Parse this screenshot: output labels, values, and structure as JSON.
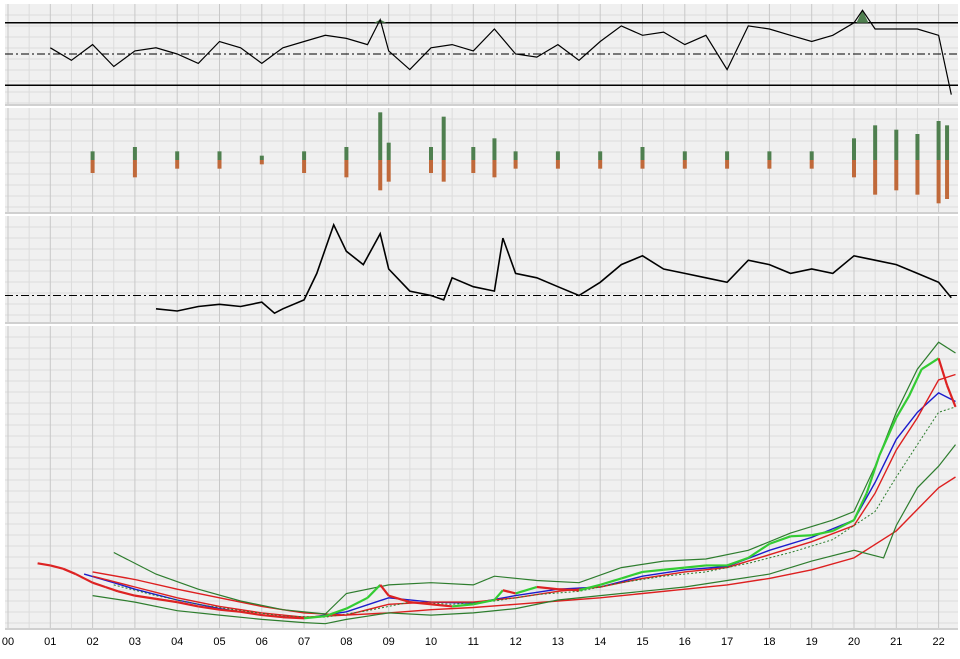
{
  "colors": {
    "background": "#f0f0f0",
    "grid": "#c8c8c8",
    "grid_minor": "#dcdcdc",
    "divider": "#a0a0a0",
    "line": "#000000",
    "bar_pos": "#4f7f4f",
    "bar_neg": "#c0693a",
    "fill_pos": "#4f7f4f",
    "price_up": "#33cc33",
    "price_down": "#dd2222",
    "ma_blue": "#1c1ccc",
    "ma_red": "#dd2020",
    "band_green": "#2e7d2e",
    "ma_dotted": "#2e7d2e"
  },
  "chart_data": [
    {
      "panel": "oscillator",
      "type": "line",
      "x_range": [
        2000,
        2022.5
      ],
      "upper_level": 1,
      "lower_level": -1,
      "mid_level": 0,
      "series": [
        {
          "x": [
            2001.0,
            2001.5,
            2002.0,
            2002.5,
            2003.0,
            2003.5,
            2004.0,
            2004.5,
            2005.0,
            2005.5,
            2006.0,
            2006.5,
            2007.0,
            2007.5,
            2008.0,
            2008.5,
            2008.8,
            2009.0,
            2009.5,
            2010.0,
            2010.5,
            2011.0,
            2011.5,
            2012.0,
            2012.5,
            2013.0,
            2013.5,
            2014.0,
            2014.5,
            2015.0,
            2015.5,
            2016.0,
            2016.5,
            2017.0,
            2017.5,
            2018.0,
            2018.5,
            2019.0,
            2019.5,
            2020.0,
            2020.2,
            2020.5,
            2021.0,
            2021.5,
            2022.0,
            2022.3
          ],
          "values": [
            0.2,
            -0.2,
            0.3,
            -0.4,
            0.1,
            0.2,
            0.0,
            -0.3,
            0.4,
            0.2,
            -0.3,
            0.2,
            0.4,
            0.6,
            0.5,
            0.3,
            1.1,
            0.1,
            -0.5,
            0.2,
            0.3,
            0.1,
            0.8,
            0.0,
            -0.1,
            0.3,
            -0.2,
            0.4,
            0.9,
            0.6,
            0.7,
            0.3,
            0.6,
            -0.5,
            0.9,
            0.8,
            0.6,
            0.4,
            0.6,
            1.0,
            1.4,
            0.8,
            0.8,
            0.8,
            0.6,
            -1.3
          ]
        }
      ]
    },
    {
      "panel": "histogram",
      "type": "bar",
      "x_range": [
        2000,
        2022.5
      ],
      "series": [
        {
          "x": [
            2002,
            2003,
            2004,
            2005,
            2006,
            2007,
            2008,
            2008.8,
            2009,
            2010,
            2010.3,
            2011,
            2011.5,
            2012,
            2013,
            2014,
            2015,
            2016,
            2017,
            2018,
            2019,
            2020,
            2020.5,
            2021,
            2021.5,
            2022,
            2022.2
          ],
          "values": [
            0.2,
            0.3,
            0.2,
            0.2,
            0.1,
            0.2,
            0.3,
            1.1,
            0.4,
            0.3,
            1.0,
            0.3,
            0.5,
            0.2,
            0.2,
            0.2,
            0.3,
            0.2,
            0.2,
            0.2,
            0.2,
            0.5,
            0.8,
            0.7,
            0.6,
            0.9,
            0.8
          ],
          "neg_values": [
            -0.3,
            -0.4,
            -0.2,
            -0.2,
            -0.1,
            -0.3,
            -0.4,
            -0.7,
            -0.5,
            -0.3,
            -0.5,
            -0.3,
            -0.4,
            -0.2,
            -0.2,
            -0.2,
            -0.2,
            -0.2,
            -0.2,
            -0.2,
            -0.2,
            -0.4,
            -0.8,
            -0.7,
            -0.8,
            -1.0,
            -0.9
          ]
        }
      ]
    },
    {
      "panel": "relative-strength",
      "type": "line",
      "x_range": [
        2000,
        2022.5
      ],
      "baseline": 0,
      "series": [
        {
          "x": [
            2003.5,
            2004.0,
            2004.5,
            2005.0,
            2005.5,
            2006.0,
            2006.3,
            2006.5,
            2007.0,
            2007.3,
            2007.7,
            2008.0,
            2008.4,
            2008.8,
            2009.0,
            2009.5,
            2010.0,
            2010.3,
            2010.5,
            2011.0,
            2011.5,
            2011.7,
            2012.0,
            2012.5,
            2013.0,
            2013.5,
            2014.0,
            2014.5,
            2015.0,
            2015.5,
            2016.0,
            2016.5,
            2017.0,
            2017.5,
            2018.0,
            2018.5,
            2019.0,
            2019.5,
            2020.0,
            2020.5,
            2021.0,
            2021.5,
            2022.0,
            2022.3
          ],
          "values": [
            -0.3,
            -0.35,
            -0.25,
            -0.2,
            -0.25,
            -0.15,
            -0.4,
            -0.3,
            -0.1,
            0.5,
            1.6,
            1.0,
            0.7,
            1.4,
            0.6,
            0.1,
            0.0,
            -0.1,
            0.4,
            0.2,
            0.1,
            1.3,
            0.5,
            0.4,
            0.2,
            0.0,
            0.3,
            0.7,
            0.9,
            0.6,
            0.5,
            0.4,
            0.3,
            0.8,
            0.7,
            0.5,
            0.6,
            0.5,
            0.9,
            0.8,
            0.7,
            0.5,
            0.3,
            -0.05
          ]
        }
      ]
    },
    {
      "panel": "price",
      "type": "line",
      "x_range": [
        2000,
        2022.5
      ],
      "x_ticks": [
        "00",
        "01",
        "02",
        "03",
        "04",
        "05",
        "06",
        "07",
        "08",
        "09",
        "10",
        "11",
        "12",
        "13",
        "14",
        "15",
        "16",
        "17",
        "18",
        "19",
        "20",
        "21",
        "22"
      ],
      "series": [
        {
          "role": "price",
          "x": [
            2000.7,
            2001.0,
            2001.3,
            2001.6,
            2002.0,
            2002.3,
            2002.6,
            2003.0,
            2003.5,
            2004.0,
            2004.5,
            2005.0,
            2005.5,
            2006.0,
            2006.5,
            2007.0,
            2007.5,
            2008.0,
            2008.5,
            2008.8,
            2009.0,
            2009.5,
            2010.0,
            2010.5,
            2011.0,
            2011.5,
            2011.7,
            2012.0,
            2012.5,
            2013.0,
            2013.5,
            2014.0,
            2014.5,
            2015.0,
            2015.5,
            2016.0,
            2016.5,
            2017.0,
            2017.5,
            2018.0,
            2018.5,
            2019.0,
            2019.5,
            2020.0,
            2020.3,
            2020.6,
            2021.0,
            2021.3,
            2021.6,
            2022.0,
            2022.2,
            2022.4
          ],
          "values": [
            60,
            58,
            55,
            50,
            42,
            38,
            34,
            30,
            27,
            24,
            20,
            17,
            15,
            12,
            10,
            9,
            11,
            18,
            28,
            40,
            30,
            24,
            22,
            20,
            22,
            26,
            35,
            32,
            38,
            36,
            35,
            40,
            46,
            52,
            54,
            56,
            58,
            58,
            65,
            78,
            85,
            86,
            90,
            100,
            125,
            160,
            195,
            215,
            240,
            250,
            225,
            205
          ]
        },
        {
          "role": "ma-blue",
          "x": [
            2001.8,
            2002.5,
            2003.0,
            2004.0,
            2005.0,
            2006.0,
            2007.0,
            2008.0,
            2009.0,
            2010.0,
            2011.0,
            2012.0,
            2013.0,
            2014.0,
            2015.0,
            2016.0,
            2017.0,
            2018.0,
            2019.0,
            2020.0,
            2020.5,
            2021.0,
            2021.5,
            2022.0,
            2022.4
          ],
          "values": [
            50,
            42,
            36,
            26,
            18,
            12,
            9,
            15,
            28,
            24,
            23,
            30,
            36,
            38,
            48,
            54,
            57,
            72,
            84,
            100,
            135,
            175,
            200,
            218,
            210
          ]
        },
        {
          "role": "ma-red-fast",
          "x": [
            2002.0,
            2003.0,
            2004.0,
            2005.0,
            2006.0,
            2007.0,
            2008.0,
            2009.0,
            2010.0,
            2011.0,
            2012.0,
            2013.0,
            2014.0,
            2015.0,
            2016.0,
            2017.0,
            2018.0,
            2019.0,
            2020.0,
            2020.5,
            2021.0,
            2021.5,
            2022.0,
            2022.4
          ],
          "values": [
            48,
            38,
            28,
            20,
            14,
            10,
            12,
            22,
            24,
            24,
            28,
            34,
            38,
            46,
            52,
            56,
            68,
            80,
            95,
            125,
            165,
            195,
            230,
            235
          ]
        },
        {
          "role": "ma-dotted",
          "x": [
            2002.5,
            2003.5,
            2004.5,
            2005.5,
            2006.5,
            2007.5,
            2008.5,
            2009.5,
            2010.5,
            2011.5,
            2012.5,
            2013.5,
            2014.5,
            2015.5,
            2016.5,
            2017.5,
            2018.5,
            2019.5,
            2020.5,
            2021.0,
            2021.5,
            2022.0,
            2022.4
          ],
          "values": [
            40,
            30,
            22,
            16,
            11,
            10,
            16,
            24,
            22,
            25,
            31,
            34,
            42,
            48,
            52,
            60,
            70,
            82,
            108,
            140,
            170,
            200,
            205
          ]
        },
        {
          "role": "ma-red-slow",
          "x": [
            2002.0,
            2003.0,
            2004.0,
            2005.0,
            2006.0,
            2007.0,
            2008.0,
            2009.0,
            2010.0,
            2011.0,
            2012.0,
            2013.0,
            2014.0,
            2015.0,
            2016.0,
            2017.0,
            2018.0,
            2019.0,
            2020.0,
            2021.0,
            2021.5,
            2022.0,
            2022.4
          ],
          "values": [
            52,
            45,
            36,
            28,
            20,
            14,
            12,
            14,
            17,
            19,
            22,
            25,
            28,
            32,
            36,
            40,
            46,
            54,
            65,
            90,
            110,
            130,
            140
          ]
        },
        {
          "role": "band-upper",
          "x": [
            2002.5,
            2003.5,
            2004.5,
            2005.5,
            2006.5,
            2007.5,
            2008.0,
            2009.0,
            2010.0,
            2011.0,
            2011.5,
            2012.5,
            2013.5,
            2014.5,
            2015.5,
            2016.5,
            2017.5,
            2018.5,
            2019.5,
            2020.0,
            2020.5,
            2021.0,
            2021.5,
            2022.0,
            2022.4
          ],
          "values": [
            70,
            50,
            36,
            25,
            17,
            13,
            32,
            40,
            42,
            40,
            48,
            44,
            42,
            56,
            62,
            64,
            72,
            88,
            100,
            108,
            150,
            200,
            240,
            265,
            255
          ]
        },
        {
          "role": "band-lower",
          "x": [
            2002.0,
            2003.0,
            2004.0,
            2005.0,
            2006.0,
            2007.0,
            2007.5,
            2008.0,
            2009.0,
            2010.0,
            2011.0,
            2012.0,
            2013.0,
            2014.0,
            2015.0,
            2016.0,
            2017.0,
            2018.0,
            2019.0,
            2020.0,
            2020.7,
            2021.0,
            2021.5,
            2022.0,
            2022.4
          ],
          "values": [
            30,
            24,
            16,
            12,
            8,
            5,
            4,
            8,
            14,
            12,
            14,
            18,
            26,
            30,
            34,
            38,
            44,
            50,
            62,
            72,
            65,
            95,
            130,
            150,
            170
          ]
        }
      ]
    }
  ]
}
